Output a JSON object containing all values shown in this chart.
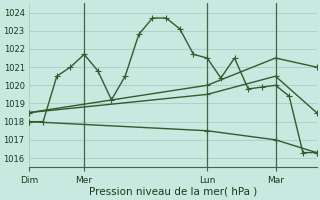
{
  "background_color": "#c8e8e0",
  "grid_color": "#a0c8c0",
  "line_color": "#2d5e2d",
  "vline_color": "#446644",
  "xlabel": "Pression niveau de la mer( hPa )",
  "ylim": [
    1015.5,
    1024.5
  ],
  "yticks": [
    1016,
    1017,
    1018,
    1019,
    1020,
    1021,
    1022,
    1023,
    1024
  ],
  "day_labels": [
    "Dim",
    "Mer",
    "Lun",
    "Mar"
  ],
  "day_positions": [
    0,
    4,
    13,
    18
  ],
  "total_steps": 22,
  "line_main": {
    "x": [
      0,
      1,
      2,
      3,
      4,
      5,
      6,
      7,
      8,
      9,
      10,
      11,
      12,
      13,
      14,
      15,
      16,
      17,
      18,
      19,
      20,
      21
    ],
    "y": [
      1018.0,
      1018.0,
      1020.5,
      1021.0,
      1021.7,
      1020.8,
      1019.2,
      1020.5,
      1022.8,
      1023.7,
      1023.7,
      1023.1,
      1021.7,
      1021.5,
      1020.4,
      1021.5,
      1019.8,
      1019.9,
      1020.0,
      1019.4,
      1016.3,
      1016.3
    ]
  },
  "line_a": {
    "x": [
      0,
      13,
      18,
      21
    ],
    "y": [
      1018.5,
      1020.0,
      1021.5,
      1021.0
    ]
  },
  "line_b": {
    "x": [
      0,
      13,
      18,
      21
    ],
    "y": [
      1018.5,
      1019.5,
      1020.5,
      1018.5
    ]
  },
  "line_c": {
    "x": [
      0,
      13,
      18,
      21
    ],
    "y": [
      1018.0,
      1017.5,
      1017.0,
      1016.3
    ]
  },
  "vlines": [
    4,
    13,
    18
  ],
  "marker": "+",
  "markersize": 4,
  "linewidth": 1.0
}
